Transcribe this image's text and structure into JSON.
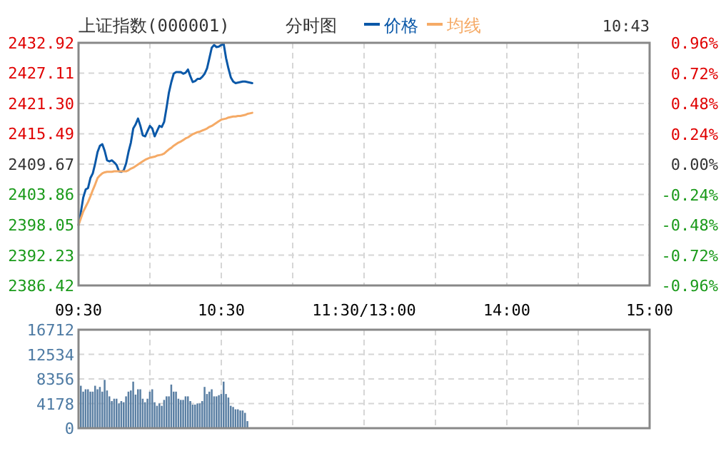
{
  "chart_data": [
    {
      "type": "line",
      "title": "上证指数(000001)",
      "subtitle": "分时图",
      "annotations": [
        "10:43"
      ],
      "legend": "top",
      "grid": true,
      "categories": [
        "09:30",
        null,
        null,
        null,
        null,
        null,
        null,
        null,
        null,
        null,
        null,
        null,
        null,
        null,
        null,
        null,
        null,
        null,
        null,
        null,
        null,
        null,
        null,
        null,
        null,
        null,
        null,
        null,
        null,
        null,
        null,
        null,
        null,
        null,
        null,
        null,
        null,
        null,
        null,
        null,
        null,
        null,
        null,
        null,
        null,
        null,
        null,
        null,
        null,
        null,
        null,
        null,
        null,
        null,
        null,
        null,
        null,
        null,
        null,
        null,
        "10:30",
        null,
        null,
        null,
        null,
        null,
        null,
        null,
        null,
        null,
        null,
        null,
        null,
        null,
        null,
        null,
        null,
        null,
        null,
        null,
        null,
        null,
        null,
        null,
        null,
        null,
        null,
        null,
        null,
        null,
        null,
        null,
        null,
        null,
        null,
        null,
        null,
        null,
        null,
        null,
        null,
        null,
        null,
        null,
        null,
        null,
        null,
        null,
        null,
        null,
        null,
        null,
        null,
        null,
        null,
        null,
        null,
        null,
        null,
        null,
        "11:30/13:00",
        null,
        null,
        null,
        null,
        null,
        null,
        null,
        null,
        null,
        null,
        null,
        null,
        null,
        null,
        null,
        null,
        null,
        null,
        null,
        null,
        null,
        null,
        null,
        null,
        null,
        null,
        null,
        null,
        null,
        null,
        null,
        null,
        null,
        null,
        null,
        null,
        null,
        null,
        null,
        null,
        null,
        null,
        null,
        null,
        null,
        null,
        null,
        null,
        null,
        null,
        null,
        null,
        null,
        null,
        null,
        null,
        null,
        null,
        null,
        "14:00",
        null,
        null,
        null,
        null,
        null,
        null,
        null,
        null,
        null,
        null,
        null,
        null,
        null,
        null,
        null,
        null,
        null,
        null,
        null,
        null,
        null,
        null,
        null,
        null,
        null,
        null,
        null,
        null,
        null,
        null,
        null,
        null,
        null,
        null,
        null,
        null,
        null,
        null,
        null,
        null,
        null,
        null,
        null,
        null,
        null,
        null,
        null,
        null,
        null,
        null,
        null,
        null,
        null,
        null,
        null,
        null,
        null,
        null,
        null,
        "15:00"
      ],
      "ylim": [
        2386.42,
        2432.92
      ],
      "yticks": [
        2386.42,
        2392.23,
        2398.05,
        2403.86,
        2409.67,
        2415.49,
        {
          "value": 2421.3,
          "label": "2421.30"
        },
        2427.11,
        2432.92
      ],
      "y2lim": [
        -0.96,
        0.96
      ],
      "y2ticks": [
        {
          "value": -0.96,
          "label": "-0.96%"
        },
        {
          "value": -0.72,
          "label": "-0.72%"
        },
        {
          "value": -0.48,
          "label": "-0.48%"
        },
        {
          "value": -0.24,
          "label": "-0.24%"
        },
        {
          "value": 0,
          "label": "0.00%"
        },
        {
          "value": 0.24,
          "label": "0.24%"
        },
        {
          "value": 0.48,
          "label": "0.48%"
        },
        {
          "value": 0.72,
          "label": "0.72%"
        },
        {
          "value": 0.96,
          "label": "0.96%"
        }
      ],
      "series": [
        {
          "name": "价格",
          "color": "#0a58a8",
          "values": [
            2398.0,
            2400.5,
            2403.3,
            2404.8,
            2405.1,
            2407.0,
            2407.9,
            2409.8,
            2412.0,
            2413.2,
            2413.5,
            2412.2,
            2410.4,
            2410.2,
            2410.4,
            2410.0,
            2409.5,
            2408.3,
            2408.2,
            2408.5,
            2409.8,
            2412.0,
            2413.8,
            2416.5,
            2417.3,
            2418.4,
            2417.0,
            2415.2,
            2415.0,
            2416.0,
            2417.0,
            2416.5,
            2415.0,
            2416.0,
            2417.0,
            2416.8,
            2417.8,
            2420.5,
            2423.4,
            2425.4,
            2427.0,
            2427.3,
            2427.3,
            2427.3,
            2427.0,
            2427.2,
            2427.8,
            2426.5,
            2425.4,
            2425.6,
            2426.0,
            2426.0,
            2426.4,
            2427.0,
            2428.0,
            2430.0,
            2432.0,
            2432.5,
            2432.1,
            2432.2,
            2432.5,
            2432.7,
            2430.0,
            2428.0,
            2426.3,
            2425.5,
            2425.2,
            2425.3,
            2425.4,
            2425.5,
            2425.5,
            2425.4,
            2425.3,
            2425.2,
            null,
            null,
            null,
            null,
            null,
            null,
            null,
            null,
            null,
            null,
            null,
            null,
            null,
            null,
            null,
            null,
            null,
            null,
            null,
            null,
            null,
            null,
            null,
            null,
            null,
            null,
            null,
            null,
            null,
            null,
            null,
            null,
            null,
            null,
            null,
            null,
            null,
            null,
            null,
            null,
            null,
            null,
            null,
            null,
            null,
            null,
            null,
            null,
            null,
            null,
            null,
            null,
            null,
            null,
            null,
            null,
            null,
            null,
            null,
            null,
            null,
            null,
            null,
            null,
            null,
            null,
            null,
            null,
            null,
            null,
            null,
            null,
            null,
            null,
            null,
            null,
            null,
            null,
            null,
            null,
            null,
            null,
            null,
            null,
            null,
            null,
            null,
            null,
            null,
            null,
            null,
            null,
            null,
            null,
            null,
            null,
            null,
            null,
            null,
            null,
            null,
            null,
            null,
            null,
            null,
            null,
            null,
            null,
            null,
            null,
            null,
            null,
            null,
            null,
            null,
            null,
            null,
            null,
            null,
            null,
            null,
            null,
            null,
            null,
            null,
            null,
            null,
            null,
            null,
            null,
            null,
            null,
            null,
            null,
            null,
            null,
            null,
            null,
            null,
            null,
            null,
            null,
            null,
            null,
            null,
            null,
            null,
            null,
            null,
            null,
            null,
            null,
            null,
            null,
            null,
            null,
            null,
            null,
            null,
            null,
            null,
            null,
            null,
            null,
            null,
            null,
            null
          ]
        },
        {
          "name": "均线",
          "color": "#f5aa66",
          "values": [
            2398.0,
            2399.3,
            2400.6,
            2401.5,
            2402.4,
            2403.5,
            2404.7,
            2405.8,
            2407.0,
            2407.5,
            2407.9,
            2408.1,
            2408.2,
            2408.2,
            2408.2,
            2408.3,
            2408.3,
            2408.3,
            2408.3,
            2408.3,
            2408.3,
            2408.5,
            2408.8,
            2409.0,
            2409.3,
            2409.6,
            2409.9,
            2410.2,
            2410.5,
            2410.7,
            2410.9,
            2411.0,
            2411.1,
            2411.3,
            2411.4,
            2411.5,
            2411.7,
            2412.1,
            2412.5,
            2412.8,
            2413.2,
            2413.5,
            2413.8,
            2414.0,
            2414.3,
            2414.6,
            2414.8,
            2415.1,
            2415.4,
            2415.6,
            2415.8,
            2415.9,
            2416.1,
            2416.3,
            2416.5,
            2416.8,
            2417.0,
            2417.3,
            2417.6,
            2417.9,
            2418.2,
            2418.3,
            2418.4,
            2418.6,
            2418.7,
            2418.8,
            2418.8,
            2418.9,
            2418.9,
            2419.0,
            2419.1,
            2419.3,
            2419.4,
            2419.5,
            null,
            null,
            null,
            null,
            null,
            null,
            null,
            null,
            null,
            null,
            null,
            null,
            null,
            null,
            null,
            null,
            null,
            null,
            null,
            null,
            null,
            null,
            null,
            null,
            null,
            null,
            null,
            null,
            null,
            null,
            null,
            null,
            null,
            null,
            null,
            null,
            null,
            null,
            null,
            null,
            null,
            null,
            null,
            null,
            null,
            null,
            null,
            null,
            null,
            null,
            null,
            null,
            null,
            null,
            null,
            null,
            null,
            null,
            null,
            null,
            null,
            null,
            null,
            null,
            null,
            null,
            null,
            null,
            null,
            null,
            null,
            null,
            null,
            null,
            null,
            null,
            null,
            null,
            null,
            null,
            null,
            null,
            null,
            null,
            null,
            null,
            null,
            null,
            null,
            null,
            null,
            null,
            null,
            null,
            null,
            null,
            null,
            null,
            null,
            null,
            null,
            null,
            null,
            null,
            null,
            null,
            null,
            null,
            null,
            null,
            null,
            null,
            null,
            null,
            null,
            null,
            null,
            null,
            null,
            null,
            null,
            null,
            null,
            null,
            null,
            null,
            null,
            null,
            null,
            null,
            null,
            null,
            null,
            null,
            null,
            null,
            null,
            null,
            null,
            null,
            null,
            null,
            null,
            null,
            null,
            null,
            null,
            null,
            null,
            null,
            null,
            null,
            null,
            null,
            null,
            null,
            null,
            null,
            null,
            null,
            null,
            null,
            null,
            null,
            null,
            null,
            null
          ]
        }
      ]
    },
    {
      "type": "bar",
      "grid": true,
      "tick_labels": "y",
      "categories": [
        null,
        null,
        null,
        null,
        null,
        null,
        null,
        null,
        null,
        null,
        null,
        null,
        null,
        null,
        null,
        null,
        null,
        null,
        null,
        null,
        null,
        null,
        null,
        null,
        null,
        null,
        null,
        null,
        null,
        null,
        null,
        null,
        null,
        null,
        null,
        null,
        null,
        null,
        null,
        null,
        null,
        null,
        null,
        null,
        null,
        null,
        null,
        null,
        null,
        null,
        null,
        null,
        null,
        null,
        null,
        null,
        null,
        null,
        null,
        null,
        null,
        null,
        null,
        null,
        null,
        null,
        null,
        null,
        null,
        null,
        null,
        null,
        null,
        null,
        null,
        null,
        null,
        null,
        null,
        null,
        null,
        null,
        null,
        null,
        null,
        null,
        null,
        null,
        null,
        null,
        null,
        null,
        null,
        null,
        null,
        null,
        null,
        null,
        null,
        null,
        null,
        null,
        null,
        null,
        null,
        null,
        null,
        null,
        null,
        null,
        null,
        null,
        null,
        null,
        null,
        null,
        null,
        null,
        null,
        null,
        null,
        null,
        null,
        null,
        null,
        null,
        null,
        null,
        null,
        null,
        null,
        null,
        null,
        null,
        null,
        null,
        null,
        null,
        null,
        null,
        null,
        null,
        null,
        null,
        null,
        null,
        null,
        null,
        null,
        null,
        null,
        null,
        null,
        null,
        null,
        null,
        null,
        null,
        null,
        null,
        null,
        null,
        null,
        null,
        null,
        null,
        null,
        null,
        null,
        null,
        null,
        null,
        null,
        null,
        null,
        null,
        null,
        null,
        null,
        null,
        null,
        null,
        null,
        null,
        null,
        null,
        null,
        null,
        null,
        null,
        null,
        null,
        null,
        null,
        null,
        null,
        null,
        null,
        null,
        null,
        null,
        null,
        null,
        null,
        null,
        null,
        null,
        null,
        null,
        null,
        null,
        null,
        null,
        null,
        null,
        null,
        null,
        null,
        null,
        null,
        null,
        null,
        null,
        null,
        null,
        null,
        null,
        null,
        null,
        null,
        null,
        null,
        null,
        null,
        null,
        null,
        null,
        null,
        null,
        null,
        null
      ],
      "ylim": [
        0,
        16712
      ],
      "yticks": [
        0,
        4178,
        8356,
        12534,
        16712
      ],
      "color": "#5a7fa3",
      "values": [
        7200,
        6200,
        6600,
        6600,
        6200,
        6200,
        7200,
        6600,
        7000,
        6200,
        8200,
        6400,
        5400,
        4600,
        5000,
        5000,
        4200,
        4600,
        4400,
        5400,
        6200,
        6400,
        7900,
        5700,
        6600,
        6600,
        5000,
        4400,
        5000,
        6200,
        6600,
        4400,
        3800,
        4200,
        3800,
        4800,
        5400,
        5400,
        7400,
        6200,
        6200,
        5000,
        4800,
        4800,
        5400,
        5400,
        4600,
        4000,
        4000,
        4200,
        4200,
        4600,
        7000,
        5800,
        6200,
        6600,
        5400,
        5400,
        5600,
        5800,
        7900,
        5800,
        5200,
        3800,
        3600,
        3200,
        3200,
        3000,
        3000,
        2600,
        1200,
        null,
        null,
        null,
        null,
        null,
        null,
        null,
        null,
        null,
        null,
        null,
        null,
        null,
        null,
        null,
        null,
        null,
        null,
        null,
        null,
        null,
        null,
        null,
        null,
        null,
        null,
        null,
        null,
        null,
        null,
        null,
        null,
        null,
        null,
        null,
        null,
        null,
        null,
        null,
        null,
        null,
        null,
        null,
        null,
        null,
        null,
        null,
        null,
        null,
        null,
        null,
        null,
        null,
        null,
        null,
        null,
        null,
        null,
        null,
        null,
        null,
        null,
        null,
        null,
        null,
        null,
        null,
        null,
        null,
        null,
        null,
        null,
        null,
        null,
        null,
        null,
        null,
        null,
        null,
        null,
        null,
        null,
        null,
        null,
        null,
        null,
        null,
        null,
        null,
        null,
        null,
        null,
        null,
        null,
        null,
        null,
        null,
        null,
        null,
        null,
        null,
        null,
        null,
        null,
        null,
        null,
        null,
        null,
        null,
        null,
        null,
        null,
        null,
        null,
        null,
        null,
        null,
        null,
        null,
        null,
        null,
        null,
        null,
        null,
        null,
        null,
        null,
        null,
        null,
        null,
        null,
        null,
        null,
        null,
        null,
        null,
        null,
        null,
        null,
        null,
        null,
        null,
        null,
        null,
        null,
        null,
        null,
        null,
        null,
        null,
        null,
        null,
        null,
        null,
        null,
        null,
        null,
        null,
        null,
        null,
        null,
        null,
        null,
        null,
        null,
        null,
        null,
        null,
        null,
        null
      ]
    }
  ]
}
